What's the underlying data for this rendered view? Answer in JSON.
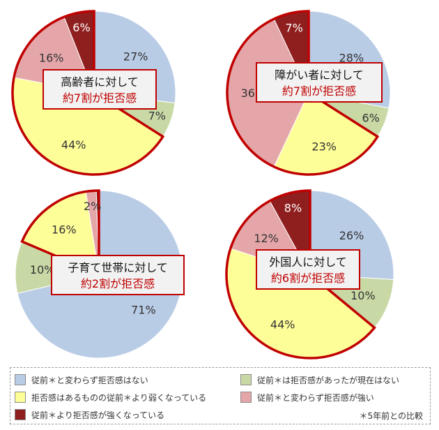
{
  "colors": {
    "no_change_none": "#b9cce6",
    "none_now": "#c8d9a6",
    "weaker": "#fefe99",
    "no_change_strong": "#e4a6a9",
    "stronger": "#8f1f1f",
    "highlight": "#c00000",
    "callout_bg": "#f2f2f2",
    "callout_sub": "#c00000"
  },
  "chart_data": [
    {
      "type": "pie",
      "callout": {
        "line1": "高齢者に対して",
        "line2": "約7割が拒否感"
      },
      "slices": [
        {
          "series": "no_change_none",
          "value": 27,
          "label": "27%"
        },
        {
          "series": "none_now",
          "value": 7,
          "label": "7%"
        },
        {
          "series": "weaker",
          "value": 44,
          "label": "44%"
        },
        {
          "series": "no_change_strong",
          "value": 16,
          "label": "16%"
        },
        {
          "series": "stronger",
          "value": 6,
          "label": "6%"
        }
      ]
    },
    {
      "type": "pie",
      "callout": {
        "line1": "障がい者に対して",
        "line2": "約7割が拒否感"
      },
      "slices": [
        {
          "series": "no_change_none",
          "value": 28,
          "label": "28%"
        },
        {
          "series": "none_now",
          "value": 6,
          "label": "6%"
        },
        {
          "series": "weaker",
          "value": 23,
          "label": "23%"
        },
        {
          "series": "no_change_strong",
          "value": 36,
          "label": "36%"
        },
        {
          "series": "stronger",
          "value": 7,
          "label": "7%"
        }
      ]
    },
    {
      "type": "pie",
      "callout": {
        "line1": "子育て世帯に対して",
        "line2": "約2割が拒否感"
      },
      "slices": [
        {
          "series": "no_change_none",
          "value": 71,
          "label": "71%"
        },
        {
          "series": "none_now",
          "value": 10,
          "label": "10%"
        },
        {
          "series": "weaker",
          "value": 16,
          "label": "16%"
        },
        {
          "series": "no_change_strong",
          "value": 2,
          "label": "2%"
        },
        {
          "series": "stronger",
          "value": 0.5,
          "label": ""
        }
      ]
    },
    {
      "type": "pie",
      "callout": {
        "line1": "外国人に対して",
        "line2": "約6割が拒否感"
      },
      "slices": [
        {
          "series": "no_change_none",
          "value": 26,
          "label": "26%"
        },
        {
          "series": "none_now",
          "value": 10,
          "label": "10%"
        },
        {
          "series": "weaker",
          "value": 44,
          "label": "44%"
        },
        {
          "series": "no_change_strong",
          "value": 12,
          "label": "12%"
        },
        {
          "series": "stronger",
          "value": 8,
          "label": "8%"
        }
      ]
    }
  ],
  "legend": [
    {
      "series": "no_change_none",
      "label": "従前＊と変わらず拒否感はない"
    },
    {
      "series": "none_now",
      "label": "従前＊は拒否感があったが現在はない"
    },
    {
      "series": "weaker",
      "label": "拒否感はあるものの従前＊より弱くなっている"
    },
    {
      "series": "no_change_strong",
      "label": "従前＊と変わらず拒否感が強い"
    },
    {
      "series": "stronger",
      "label": "従前＊より拒否感が強くなっている"
    }
  ],
  "footnote": "＊5年前との比較"
}
